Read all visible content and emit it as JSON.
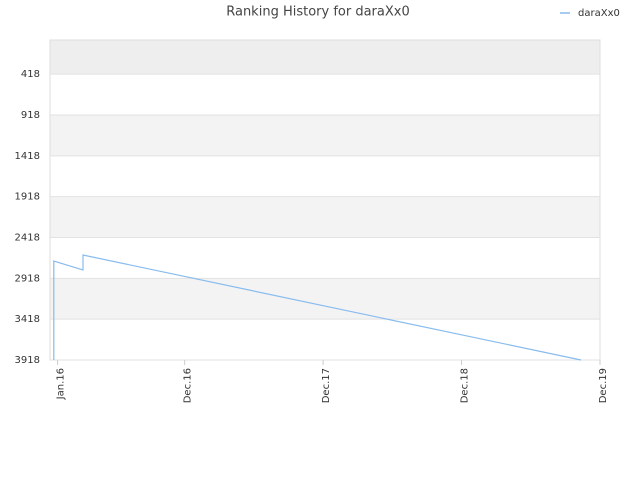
{
  "chart_data": {
    "type": "line",
    "title": "Ranking History for daraXx0",
    "x": [
      -10,
      -10,
      67,
      67,
      1380
    ],
    "series": [
      {
        "name": "daraXx0",
        "color": "#88bbee",
        "values": [
          3918,
          2706,
          2816,
          2633,
          3918
        ]
      }
    ],
    "xlim": [
      -20,
      1430
    ],
    "xticks": [
      {
        "value": 0,
        "label": "Jan.16"
      },
      {
        "value": 335,
        "label": "Dec.16"
      },
      {
        "value": 700,
        "label": "Dec.17"
      },
      {
        "value": 1065,
        "label": "Dec.18"
      },
      {
        "value": 1430,
        "label": "Dec.19"
      }
    ],
    "ylim": [
      3918,
      0
    ],
    "yticks": [
      418,
      918,
      1418,
      1918,
      2418,
      2918,
      3418,
      3918
    ],
    "grid": true,
    "legend": "top-right"
  }
}
